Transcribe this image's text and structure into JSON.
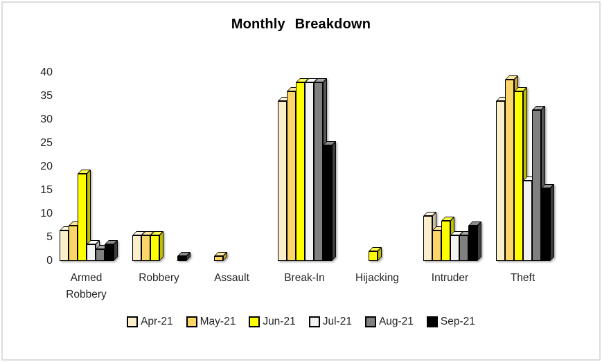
{
  "frame": {
    "border_color": "#dcdcdc",
    "background": "#ffffff"
  },
  "chart_data": {
    "type": "bar",
    "variant": "3d-clustered-column",
    "title": "Monthly Breakdown",
    "categories": [
      "Armed Robbery",
      "Robbery",
      "Assault",
      "Break-In",
      "Hijacking",
      "Intruder",
      "Theft"
    ],
    "series": [
      {
        "name": "Apr-21",
        "color": "#FAEECB",
        "top_color": "#FDF6E2",
        "side_color": "#CDbe9B",
        "values": [
          6.5,
          5.5,
          0,
          34,
          0,
          9.5,
          34
        ]
      },
      {
        "name": "May-21",
        "color": "#FBD567",
        "top_color": "#FDE59C",
        "side_color": "#C9A33F",
        "values": [
          7.5,
          5.5,
          1,
          36,
          0,
          6.5,
          38.5
        ]
      },
      {
        "name": "Jun-21",
        "color": "#FFFF00",
        "top_color": "#FFFF4D",
        "side_color": "#BFBF00",
        "values": [
          18.5,
          5.5,
          0,
          38,
          2,
          8.5,
          36
        ]
      },
      {
        "name": "Jul-21",
        "color": "#F2F2F2",
        "top_color": "#FBFBFB",
        "side_color": "#B5B5B5",
        "values": [
          3.5,
          0,
          0,
          38,
          0,
          5.5,
          17
        ]
      },
      {
        "name": "Aug-21",
        "color": "#808080",
        "top_color": "#A8A8A8",
        "side_color": "#575757",
        "values": [
          2.5,
          0,
          0,
          38,
          0,
          5.5,
          32
        ]
      },
      {
        "name": "Sep-21",
        "color": "#000000",
        "top_color": "#8C8C8C",
        "side_color": "#3D3D3D",
        "values": [
          3.5,
          1,
          0,
          24.5,
          0,
          7.5,
          15.5
        ]
      }
    ],
    "y_ticks": [
      0,
      5,
      10,
      15,
      20,
      25,
      30,
      35,
      40
    ],
    "ylim": [
      0,
      40
    ],
    "grid": false,
    "legend_position": "bottom",
    "axis_text_color": "#262626"
  }
}
